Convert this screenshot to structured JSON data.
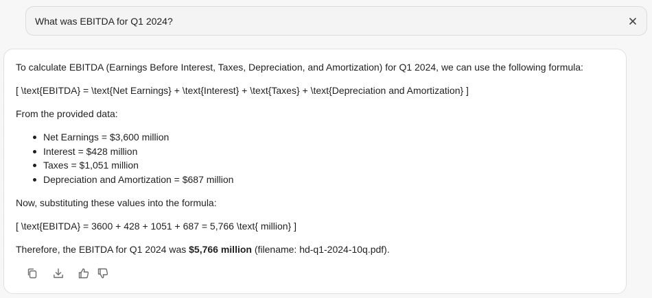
{
  "query": {
    "text": "What was EBITDA for Q1 2024?",
    "close_icon": "close-icon"
  },
  "answer": {
    "intro": "To calculate EBITDA (Earnings Before Interest, Taxes, Depreciation, and Amortization) for Q1 2024, we can use the following formula:",
    "formula": "[ \\text{EBITDA} = \\text{Net Earnings} + \\text{Interest} + \\text{Taxes} + \\text{Depreciation and Amortization} ]",
    "from_data": "From the provided data:",
    "items": [
      "Net Earnings = $3,600 million",
      "Interest = $428 million",
      "Taxes = $1,051 million",
      "Depreciation and Amortization = $687 million"
    ],
    "substituting": "Now, substituting these values into the formula:",
    "calculation": "[ \\text{EBITDA} = 3600 + 428 + 1051 + 687 = 5,766 \\text{ million} ]",
    "conclusion_prefix": "Therefore, the EBITDA for Q1 2024 was ",
    "conclusion_value": "$5,766 million",
    "conclusion_suffix": " (filename: hd-q1-2024-10q.pdf)."
  },
  "actions": [
    "copy-icon",
    "download-icon",
    "thumbs-up-icon",
    "thumbs-down-icon"
  ],
  "colors": {
    "background": "#f7f7f8",
    "card": "#ffffff",
    "query_bar": "#f4f4f5",
    "text": "#1f1f1f",
    "icon": "#6b6b70"
  }
}
